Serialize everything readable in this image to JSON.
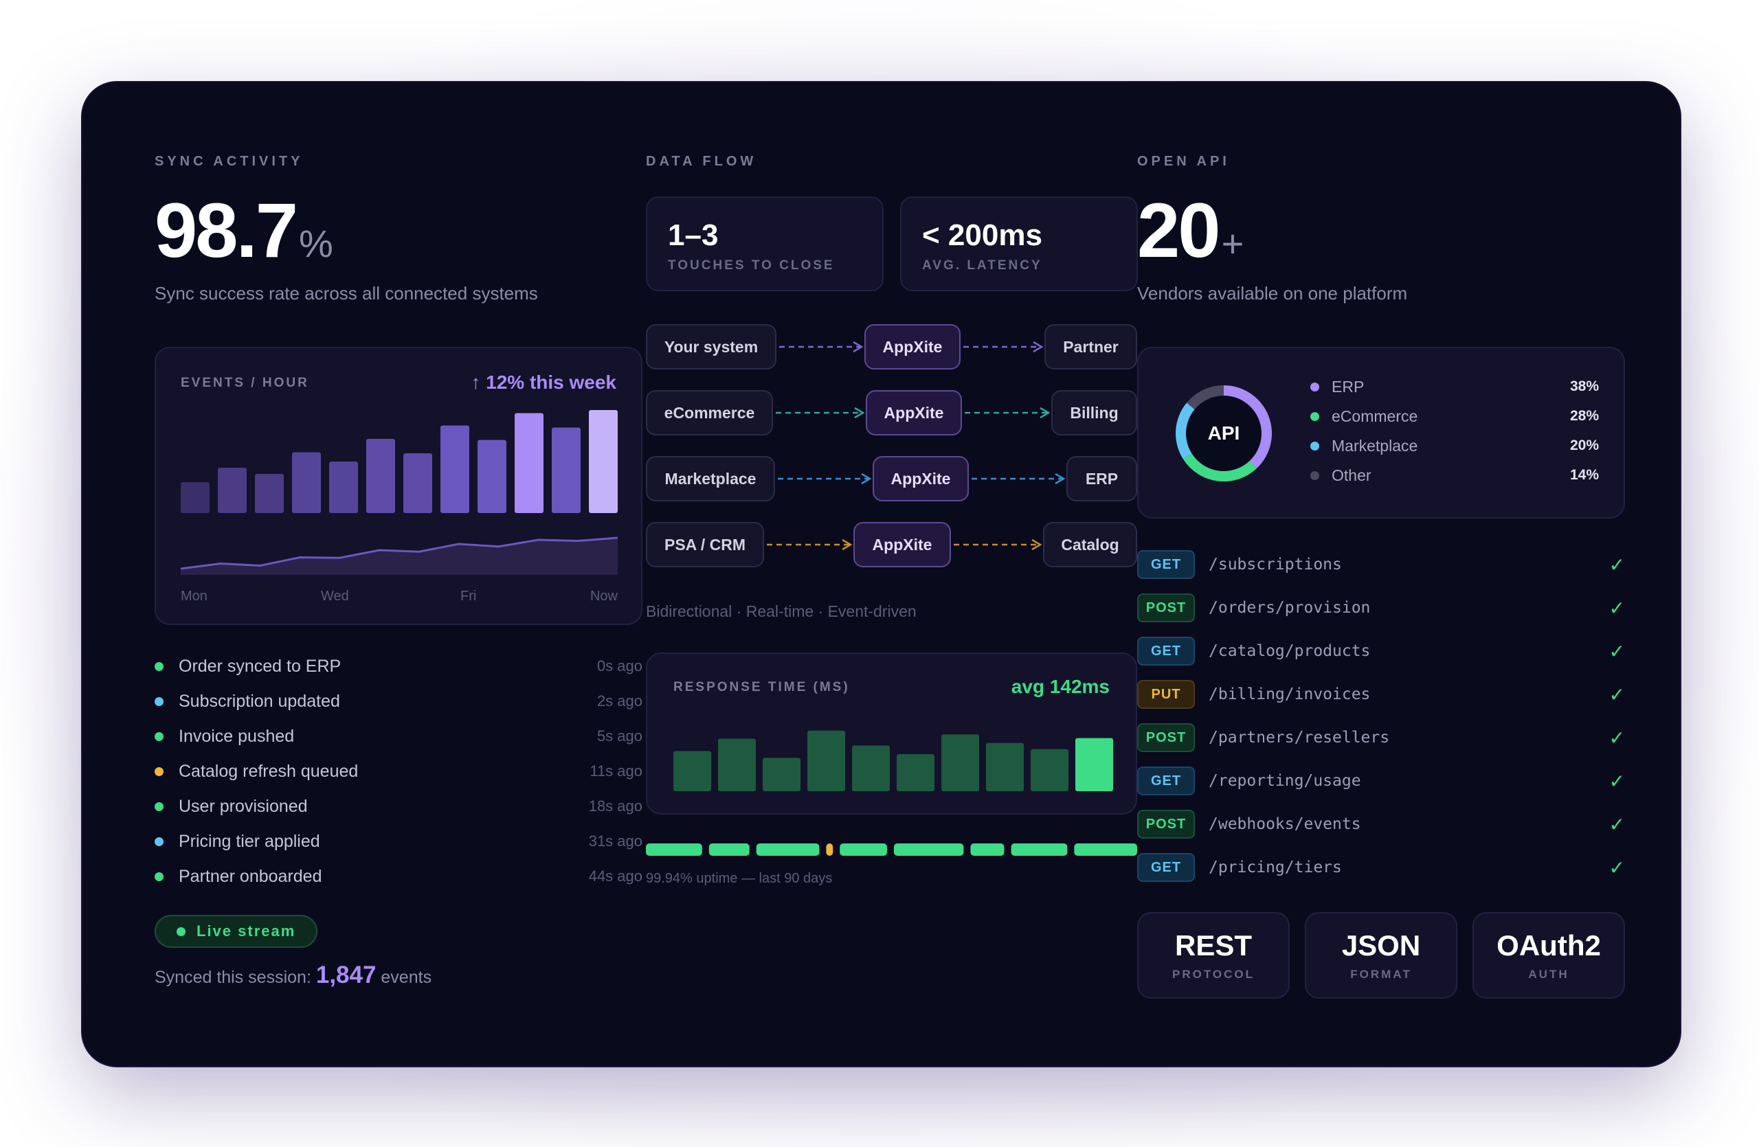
{
  "sync": {
    "kicker": "SYNC ACTIVITY",
    "value": "98.7",
    "unit": "%",
    "subtitle": "Sync success rate across all connected systems",
    "chart": {
      "title": "EVENTS / HOUR",
      "trend": "↑ 12% this week",
      "bars": [
        0.3,
        0.44,
        0.38,
        0.59,
        0.5,
        0.72,
        0.58,
        0.85,
        0.71,
        0.97,
        0.83,
        1.0
      ],
      "line": [
        0.12,
        0.22,
        0.18,
        0.34,
        0.33,
        0.48,
        0.45,
        0.6,
        0.55,
        0.68,
        0.66,
        0.72
      ],
      "axis": [
        "Mon",
        "Wed",
        "Fri",
        "Now"
      ]
    },
    "feed": [
      {
        "label": "Order synced to ERP",
        "time": "0s ago",
        "color": "#3edc86"
      },
      {
        "label": "Subscription updated",
        "time": "2s ago",
        "color": "#5fc4f2"
      },
      {
        "label": "Invoice pushed",
        "time": "5s ago",
        "color": "#3edc86"
      },
      {
        "label": "Catalog refresh queued",
        "time": "11s ago",
        "color": "#f2b53c"
      },
      {
        "label": "User provisioned",
        "time": "18s ago",
        "color": "#3edc86"
      },
      {
        "label": "Pricing tier applied",
        "time": "31s ago",
        "color": "#5fc4f2"
      },
      {
        "label": "Partner onboarded",
        "time": "44s ago",
        "color": "#3edc86"
      }
    ],
    "live_label": "Live stream",
    "session_prefix": "Synced this session:",
    "session_count": "1,847",
    "session_suffix": "events"
  },
  "flow": {
    "kicker": "DATA FLOW",
    "stats": [
      {
        "value": "1–3",
        "label": "TOUCHES TO CLOSE"
      },
      {
        "value": "< 200ms",
        "label": "AVG. LATENCY"
      }
    ],
    "rows": [
      {
        "from": "Your system",
        "hub": "AppXite",
        "to": "Partner",
        "color": "#7d68c7"
      },
      {
        "from": "eCommerce",
        "hub": "AppXite",
        "to": "Billing",
        "color": "#2fa89a"
      },
      {
        "from": "Marketplace",
        "hub": "AppXite",
        "to": "ERP",
        "color": "#3a8fc4"
      },
      {
        "from": "PSA / CRM",
        "hub": "AppXite",
        "to": "Catalog",
        "color": "#c78c2a"
      }
    ],
    "caption": "Bidirectional · Real-time · Event-driven",
    "response": {
      "title": "RESPONSE TIME (MS)",
      "avg": "avg 142ms",
      "bars": [
        0.65,
        0.85,
        0.54,
        0.98,
        0.74,
        0.6,
        0.92,
        0.78,
        0.68,
        0.86
      ]
    },
    "uptime_segments": [
      50,
      36,
      56,
      6,
      42,
      62,
      30,
      50,
      56
    ],
    "uptime_caption": "99.94% uptime — last 90 days"
  },
  "api": {
    "kicker": "OPEN API",
    "value": "20",
    "unit": "+",
    "subtitle": "Vendors available on one platform",
    "donut_label": "API",
    "donut": [
      {
        "label": "ERP",
        "pct": "38%",
        "value": 38,
        "color": "#a98cf6"
      },
      {
        "label": "eCommerce",
        "pct": "28%",
        "value": 28,
        "color": "#3edc86"
      },
      {
        "label": "Marketplace",
        "pct": "20%",
        "value": 20,
        "color": "#5fc4f2"
      },
      {
        "label": "Other",
        "pct": "14%",
        "value": 14,
        "color": "#4a4960"
      }
    ],
    "endpoints": [
      {
        "method": "GET",
        "path": "/subscriptions"
      },
      {
        "method": "POST",
        "path": "/orders/provision"
      },
      {
        "method": "GET",
        "path": "/catalog/products"
      },
      {
        "method": "PUT",
        "path": "/billing/invoices"
      },
      {
        "method": "POST",
        "path": "/partners/resellers"
      },
      {
        "method": "GET",
        "path": "/reporting/usage"
      },
      {
        "method": "POST",
        "path": "/webhooks/events"
      },
      {
        "method": "GET",
        "path": "/pricing/tiers"
      }
    ],
    "check": "✓",
    "badges": [
      {
        "title": "REST",
        "sub": "PROTOCOL"
      },
      {
        "title": "JSON",
        "sub": "FORMAT"
      },
      {
        "title": "OAuth2",
        "sub": "AUTH"
      }
    ]
  }
}
